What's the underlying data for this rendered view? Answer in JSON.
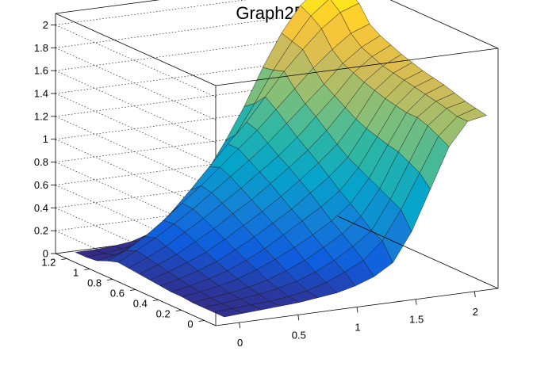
{
  "chart_data": {
    "type": "surface",
    "title": "Graph2D",
    "xlim": [
      -0.2,
      2.2
    ],
    "ylim": [
      -0.1,
      1.3
    ],
    "zlim": [
      0,
      2.1
    ],
    "x_ticks": [
      "0",
      "0.5",
      "1",
      "1.5",
      "2"
    ],
    "y_ticks": [
      "0",
      "0.2",
      "0.4",
      "0.6",
      "0.8",
      "1",
      "1.2"
    ],
    "z_ticks": [
      "0",
      "0.2",
      "0.4",
      "0.6",
      "0.8",
      "1",
      "1.2",
      "1.4",
      "1.6",
      "1.8",
      "2"
    ],
    "grid": true,
    "palette": "kBird",
    "colors": [
      "#352a87",
      "#0f5cdd",
      "#1481d6",
      "#06a4ca",
      "#2eb7a4",
      "#87bf77",
      "#d1bb59",
      "#fec832",
      "#f9fb0e"
    ],
    "surface_z": [
      [
        0.02,
        0.03,
        0.04,
        0.05,
        0.06,
        0.08,
        0.1,
        0.14,
        0.2,
        0.3,
        0.55,
        0.9,
        1.25,
        1.45,
        1.48
      ],
      [
        0.02,
        0.03,
        0.04,
        0.05,
        0.07,
        0.1,
        0.15,
        0.22,
        0.3,
        0.45,
        0.7,
        1.0,
        1.3,
        1.45,
        1.5
      ],
      [
        0.02,
        0.03,
        0.05,
        0.07,
        0.1,
        0.14,
        0.2,
        0.28,
        0.38,
        0.5,
        0.75,
        1.05,
        1.35,
        1.48,
        1.52
      ],
      [
        0.02,
        0.04,
        0.06,
        0.09,
        0.13,
        0.19,
        0.26,
        0.35,
        0.45,
        0.58,
        0.8,
        1.1,
        1.38,
        1.5,
        1.55
      ],
      [
        0.03,
        0.05,
        0.08,
        0.12,
        0.18,
        0.25,
        0.33,
        0.42,
        0.52,
        0.65,
        0.85,
        1.12,
        1.38,
        1.52,
        1.58
      ],
      [
        0.03,
        0.06,
        0.1,
        0.15,
        0.22,
        0.3,
        0.4,
        0.5,
        0.6,
        0.72,
        0.9,
        1.15,
        1.4,
        1.54,
        1.6
      ],
      [
        0.04,
        0.08,
        0.13,
        0.19,
        0.27,
        0.36,
        0.46,
        0.56,
        0.68,
        0.8,
        0.95,
        1.18,
        1.42,
        1.56,
        1.62
      ],
      [
        0.05,
        0.1,
        0.16,
        0.23,
        0.32,
        0.42,
        0.52,
        0.63,
        0.75,
        0.88,
        1.02,
        1.22,
        1.45,
        1.58,
        1.65
      ],
      [
        0.06,
        0.12,
        0.19,
        0.28,
        0.37,
        0.48,
        0.58,
        0.7,
        0.82,
        0.95,
        1.1,
        1.28,
        1.48,
        1.6,
        1.68
      ],
      [
        0.07,
        0.14,
        0.22,
        0.32,
        0.42,
        0.53,
        0.64,
        0.76,
        0.88,
        1.02,
        1.18,
        1.34,
        1.52,
        1.64,
        1.72
      ],
      [
        0.08,
        0.16,
        0.25,
        0.35,
        0.46,
        0.58,
        0.7,
        0.82,
        0.95,
        1.1,
        1.25,
        1.4,
        1.56,
        1.68,
        1.76
      ],
      [
        0.05,
        0.12,
        0.22,
        0.34,
        0.47,
        0.6,
        0.74,
        0.88,
        1.02,
        1.18,
        1.34,
        1.5,
        1.64,
        1.76,
        1.82
      ],
      [
        0.01,
        0.04,
        0.1,
        0.2,
        0.35,
        0.52,
        0.7,
        0.88,
        1.05,
        1.25,
        1.45,
        1.62,
        1.78,
        1.9,
        1.96
      ],
      [
        0.0,
        0.01,
        0.03,
        0.08,
        0.16,
        0.3,
        0.48,
        0.68,
        0.9,
        1.15,
        1.42,
        1.65,
        1.85,
        1.98,
        2.02
      ],
      [
        0.0,
        0.0,
        0.01,
        0.03,
        0.08,
        0.18,
        0.35,
        0.55,
        0.8,
        1.08,
        1.4,
        1.68,
        1.9,
        2.03,
        2.08
      ]
    ]
  }
}
